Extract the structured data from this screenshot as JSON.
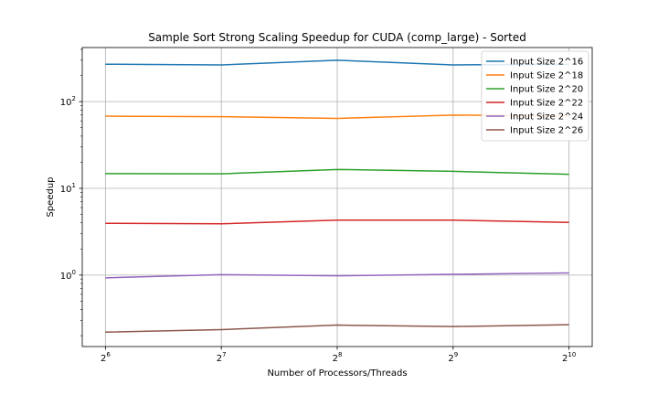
{
  "chart_data": {
    "type": "line",
    "title": "Sample Sort Strong Scaling Speedup for CUDA (comp_large) - Sorted",
    "xlabel": "Number of Processors/Threads",
    "ylabel": "Speedup",
    "x_scale": "log2",
    "y_scale": "log10",
    "x": [
      64,
      128,
      256,
      512,
      1024
    ],
    "x_tick_labels": [
      {
        "base": "2",
        "exp": "6"
      },
      {
        "base": "2",
        "exp": "7"
      },
      {
        "base": "2",
        "exp": "8"
      },
      {
        "base": "2",
        "exp": "9"
      },
      {
        "base": "2",
        "exp": "10"
      }
    ],
    "y_tick_labels": [
      {
        "base": "10",
        "exp": "0"
      },
      {
        "base": "10",
        "exp": "1"
      },
      {
        "base": "10",
        "exp": "2"
      }
    ],
    "ylim": [
      0.15,
      420
    ],
    "grid": true,
    "legend_position": "top-right",
    "series": [
      {
        "name": "Input Size 2^16",
        "color": "#1f77b4",
        "values": [
          270,
          265,
          300,
          265,
          270
        ]
      },
      {
        "name": "Input Size 2^18",
        "color": "#ff7f0e",
        "values": [
          68,
          67,
          64,
          70,
          68
        ]
      },
      {
        "name": "Input Size 2^20",
        "color": "#2ca02c",
        "values": [
          14.8,
          14.7,
          16.5,
          15.7,
          14.5
        ]
      },
      {
        "name": "Input Size 2^22",
        "color": "#d62728",
        "values": [
          3.95,
          3.9,
          4.3,
          4.3,
          4.05
        ]
      },
      {
        "name": "Input Size 2^24",
        "color": "#9467bd",
        "values": [
          0.93,
          1.01,
          0.98,
          1.02,
          1.06
        ]
      },
      {
        "name": "Input Size 2^26",
        "color": "#8c564b",
        "values": [
          0.22,
          0.235,
          0.265,
          0.255,
          0.268
        ]
      }
    ]
  }
}
